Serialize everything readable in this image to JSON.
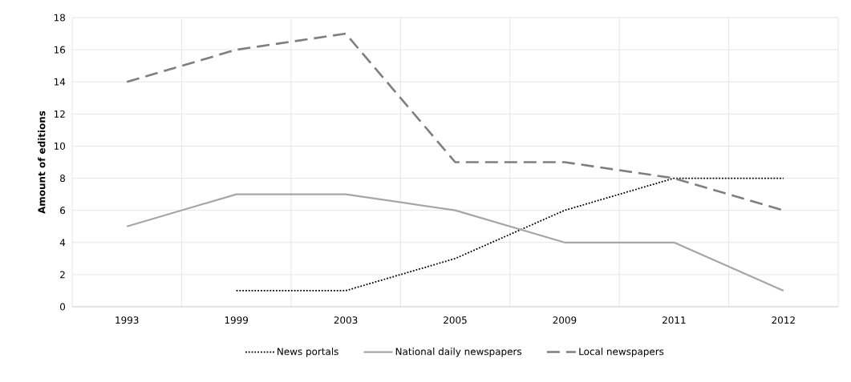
{
  "chart_data": {
    "type": "line",
    "ylabel": "Amount of editions",
    "categories": [
      "1993",
      "1999",
      "2003",
      "2005",
      "2009",
      "2011",
      "2012"
    ],
    "series": [
      {
        "name": "News portals",
        "color": "#000000",
        "line_style": "dotted",
        "values": [
          null,
          1,
          1,
          3,
          6,
          8,
          8
        ]
      },
      {
        "name": "National daily newspapers",
        "color": "#a6a6a6",
        "line_style": "solid",
        "values": [
          5,
          7,
          7,
          6,
          4,
          4,
          1
        ]
      },
      {
        "name": "Local newspapers",
        "color": "#7f7f7f",
        "line_style": "dashed",
        "values": [
          14,
          16,
          17,
          9,
          9,
          8,
          6
        ]
      }
    ],
    "ylim": [
      0,
      18
    ],
    "yticks": [
      0,
      2,
      4,
      6,
      8,
      10,
      12,
      14,
      16,
      18
    ],
    "grid": true,
    "legend": "bottom",
    "marker": "none"
  }
}
